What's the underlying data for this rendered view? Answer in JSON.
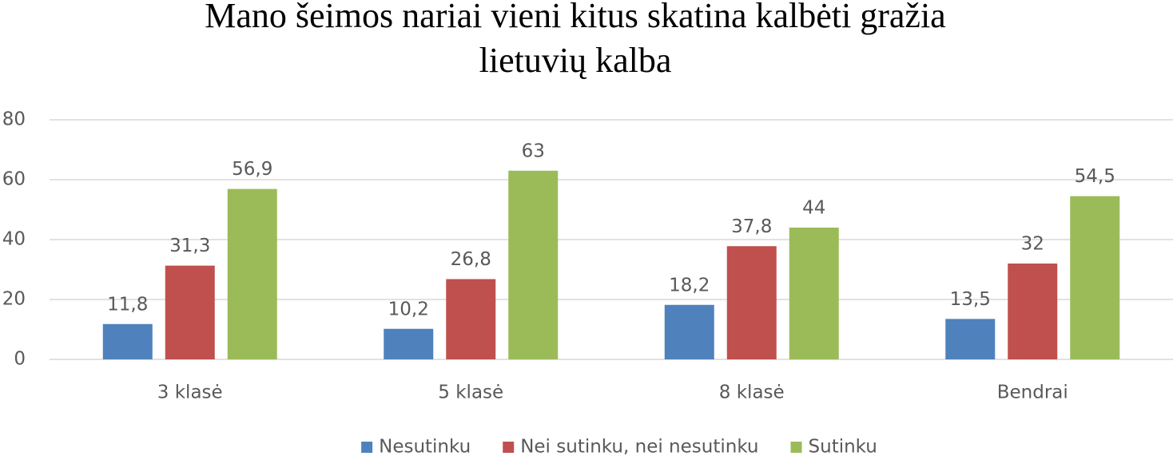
{
  "chart_data": {
    "type": "bar",
    "title": [
      "Mano šeimos nariai vieni kitus skatina kalbėti gražia",
      "lietuvių kalba"
    ],
    "categories": [
      "3 klasė",
      "5 klasė",
      "8 klasė",
      "Bendrai"
    ],
    "series": [
      {
        "name": "Nesutinku",
        "color": "#4f81bd",
        "values": [
          11.8,
          10.2,
          18.2,
          13.5
        ],
        "value_labels": [
          "11,8",
          "10,2",
          "18,2",
          "13,5"
        ]
      },
      {
        "name": "Nei sutinku, nei nesutinku",
        "color": "#c0504d",
        "values": [
          31.3,
          26.8,
          37.8,
          32
        ],
        "value_labels": [
          "31,3",
          "26,8",
          "37,8",
          "32"
        ]
      },
      {
        "name": "Sutinku",
        "color": "#9bbb59",
        "values": [
          56.9,
          63,
          44,
          54.5
        ],
        "value_labels": [
          "56,9",
          "63",
          "44",
          "54,5"
        ]
      }
    ],
    "ylim": [
      0,
      80
    ],
    "yticks": [
      0,
      20,
      40,
      60,
      80
    ],
    "grid": true,
    "legend": "bottom"
  }
}
